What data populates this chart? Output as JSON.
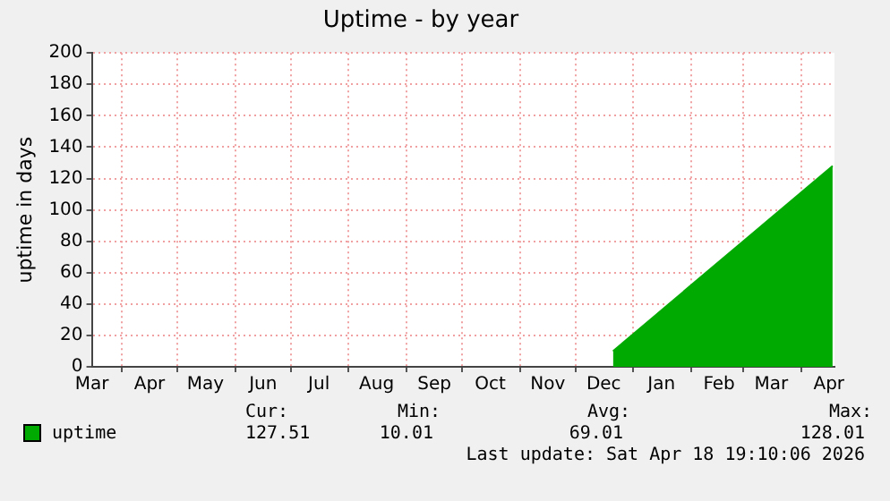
{
  "chart_data": {
    "type": "area",
    "title": "Uptime - by year",
    "ylabel": "uptime in days",
    "xlim": [
      "2025-03-16",
      "2026-04-19"
    ],
    "xticks": [
      {
        "value": "2025-03-16",
        "label": "Mar"
      },
      {
        "value": "2025-04-01",
        "label": null
      },
      {
        "value": "2025-04-16",
        "label": "Apr"
      },
      {
        "value": "2025-05-01",
        "label": null
      },
      {
        "value": "2025-05-16",
        "label": "May"
      },
      {
        "value": "2025-06-01",
        "label": null
      },
      {
        "value": "2025-06-16",
        "label": "Jun"
      },
      {
        "value": "2025-07-01",
        "label": null
      },
      {
        "value": "2025-07-16",
        "label": "Jul"
      },
      {
        "value": "2025-08-01",
        "label": null
      },
      {
        "value": "2025-08-16",
        "label": "Aug"
      },
      {
        "value": "2025-09-01",
        "label": null
      },
      {
        "value": "2025-09-16",
        "label": "Sep"
      },
      {
        "value": "2025-10-01",
        "label": null
      },
      {
        "value": "2025-10-16",
        "label": "Oct"
      },
      {
        "value": "2025-11-01",
        "label": null
      },
      {
        "value": "2025-11-16",
        "label": "Nov"
      },
      {
        "value": "2025-12-01",
        "label": null
      },
      {
        "value": "2025-12-16",
        "label": "Dec"
      },
      {
        "value": "2026-01-01",
        "label": null
      },
      {
        "value": "2026-01-16",
        "label": "Jan"
      },
      {
        "value": "2026-02-01",
        "label": null
      },
      {
        "value": "2026-02-16",
        "label": "Feb"
      },
      {
        "value": "2026-03-01",
        "label": null
      },
      {
        "value": "2026-03-16",
        "label": "Mar"
      },
      {
        "value": "2026-04-01",
        "label": null
      },
      {
        "value": "2026-04-16",
        "label": "Apr"
      }
    ],
    "ylim": [
      0,
      200
    ],
    "yticks": [
      0,
      20,
      40,
      60,
      80,
      100,
      120,
      140,
      160,
      180,
      200
    ],
    "grid": true,
    "legend": "bottom left",
    "series": [
      {
        "name": "uptime",
        "color": "#00aa00",
        "x": [
          "2025-12-21",
          "2026-04-18"
        ],
        "values": [
          10,
          128
        ]
      }
    ],
    "annotations": [
      "Cur:",
      "127.51",
      "Min:",
      "10.01",
      "Avg:",
      "69.01",
      "Max:",
      "128.01",
      "Last update: Sat Apr 18 19:10:06 2026"
    ]
  }
}
